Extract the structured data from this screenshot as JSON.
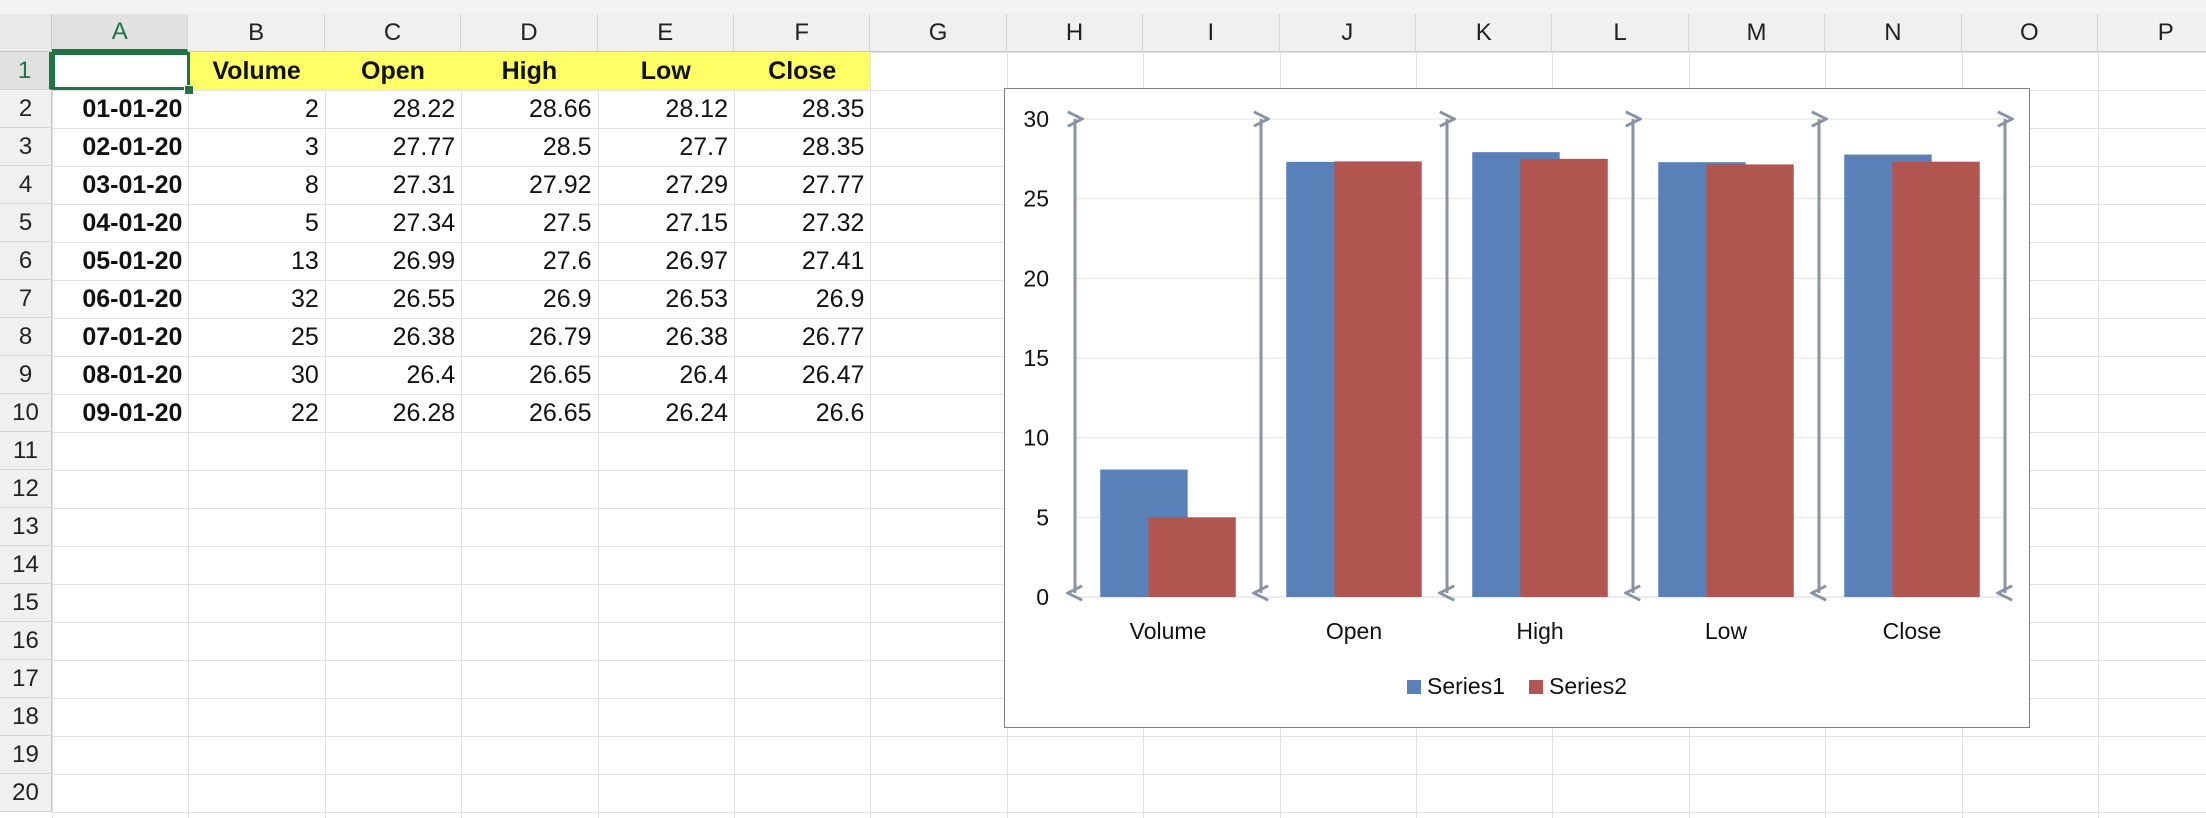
{
  "sheet": {
    "columns": [
      "A",
      "B",
      "C",
      "D",
      "E",
      "F",
      "G",
      "H",
      "I",
      "J",
      "K",
      "L",
      "M",
      "N",
      "O",
      "P"
    ],
    "rows": [
      "1",
      "2",
      "3",
      "4",
      "5",
      "6",
      "7",
      "8",
      "9",
      "10",
      "11",
      "12",
      "13",
      "14",
      "15",
      "16",
      "17",
      "18",
      "19",
      "20"
    ],
    "active_column": "A",
    "active_row": "1",
    "header_fill": "#ffff66",
    "headers": [
      "",
      "Volume",
      "Open",
      "High",
      "Low",
      "Close"
    ],
    "data": [
      [
        "01-01-20",
        "2",
        "28.22",
        "28.66",
        "28.12",
        "28.35"
      ],
      [
        "02-01-20",
        "3",
        "27.77",
        "28.5",
        "27.7",
        "28.35"
      ],
      [
        "03-01-20",
        "8",
        "27.31",
        "27.92",
        "27.29",
        "27.77"
      ],
      [
        "04-01-20",
        "5",
        "27.34",
        "27.5",
        "27.15",
        "27.32"
      ],
      [
        "05-01-20",
        "13",
        "26.99",
        "27.6",
        "26.97",
        "27.41"
      ],
      [
        "06-01-20",
        "32",
        "26.55",
        "26.9",
        "26.53",
        "26.9"
      ],
      [
        "07-01-20",
        "25",
        "26.38",
        "26.79",
        "26.38",
        "26.77"
      ],
      [
        "08-01-20",
        "30",
        "26.4",
        "26.65",
        "26.4",
        "26.47"
      ],
      [
        "09-01-20",
        "22",
        "26.28",
        "26.65",
        "26.24",
        "26.6"
      ]
    ]
  },
  "chart_data": {
    "type": "bar",
    "categories": [
      "Volume",
      "Open",
      "High",
      "Low",
      "Close"
    ],
    "series": [
      {
        "name": "Series1",
        "color": "#5a80b8",
        "values": [
          8,
          27.31,
          27.92,
          27.29,
          27.77
        ]
      },
      {
        "name": "Series2",
        "color": "#b0554f",
        "values": [
          5,
          27.34,
          27.5,
          27.15,
          27.32
        ]
      }
    ],
    "yticks": [
      "0",
      "5",
      "10",
      "15",
      "20",
      "25",
      "30"
    ],
    "ylim": [
      0,
      30
    ],
    "drop_line_color": "#8a93a6",
    "legend_position": "bottom",
    "grid": true
  }
}
